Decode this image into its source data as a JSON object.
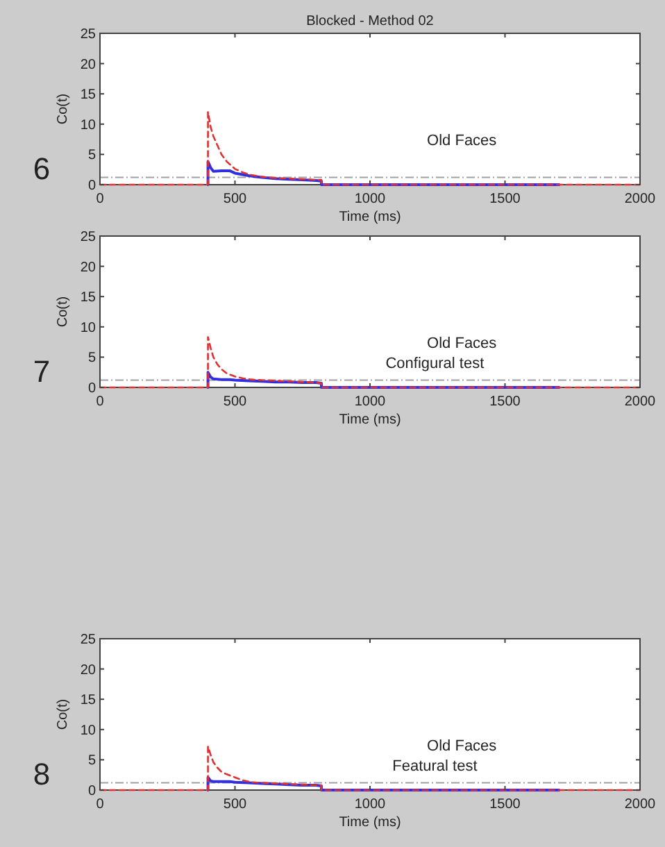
{
  "chart_data": [
    {
      "type": "line",
      "title": "Blocked - Method 02",
      "xlabel": "Time (ms)",
      "ylabel": "Co(t)",
      "xlim": [
        0,
        2000
      ],
      "ylim": [
        0,
        25
      ],
      "xticks": [
        0,
        500,
        1000,
        1500,
        2000
      ],
      "yticks": [
        0,
        5,
        10,
        15,
        20,
        25
      ],
      "annotations": [
        "6",
        "Old Faces"
      ],
      "ref_lines": [
        {
          "axis": "y",
          "value": 1.2,
          "color": "#a0a0a0",
          "line_style": "dashed"
        }
      ],
      "series": [
        {
          "color": "#e03030",
          "line_style": "dashed",
          "x": [
            0,
            400,
            400,
            410,
            420,
            435,
            450,
            470,
            500,
            530,
            560,
            600,
            650,
            700,
            750,
            800,
            820,
            820,
            2000
          ],
          "values": [
            0,
            0,
            12,
            9.5,
            8,
            6.5,
            5,
            3.8,
            2.6,
            2,
            1.6,
            1.3,
            1.1,
            1,
            0.9,
            0.8,
            0.8,
            0,
            0
          ]
        },
        {
          "color": "#3030e0",
          "line_style": "solid",
          "x": [
            400,
            400,
            410,
            420,
            450,
            480,
            500,
            550,
            600,
            650,
            700,
            750,
            800,
            820,
            820,
            1700
          ],
          "values": [
            0,
            3.8,
            2.8,
            2.2,
            2.3,
            2.3,
            1.9,
            1.5,
            1.2,
            1,
            0.9,
            0.8,
            0.7,
            0.6,
            0,
            0
          ]
        }
      ]
    },
    {
      "type": "line",
      "xlabel": "Time (ms)",
      "ylabel": "Co(t)",
      "xlim": [
        0,
        2000
      ],
      "ylim": [
        0,
        25
      ],
      "xticks": [
        0,
        500,
        1000,
        1500,
        2000
      ],
      "yticks": [
        0,
        5,
        10,
        15,
        20,
        25
      ],
      "annotations": [
        "7",
        "Old Faces",
        "Configural test"
      ],
      "ref_lines": [
        {
          "axis": "y",
          "value": 1.2,
          "color": "#a0a0a0",
          "line_style": "dashed"
        }
      ],
      "series": [
        {
          "color": "#e03030",
          "line_style": "dashed",
          "x": [
            0,
            400,
            400,
            410,
            420,
            435,
            450,
            470,
            500,
            530,
            560,
            600,
            650,
            700,
            750,
            800,
            820,
            820,
            2000
          ],
          "values": [
            0,
            0,
            8.3,
            6.5,
            5,
            3.8,
            3,
            2.3,
            1.8,
            1.5,
            1.3,
            1.2,
            1.1,
            1,
            0.9,
            0.8,
            0.7,
            0,
            0
          ]
        },
        {
          "color": "#3030e0",
          "line_style": "solid",
          "x": [
            400,
            400,
            410,
            420,
            450,
            480,
            500,
            550,
            600,
            650,
            700,
            750,
            800,
            820,
            820,
            1700
          ],
          "values": [
            0,
            2.5,
            1.7,
            1.4,
            1.3,
            1.3,
            1.2,
            1.1,
            1,
            0.9,
            0.9,
            0.8,
            0.8,
            0.7,
            0,
            0
          ]
        }
      ]
    },
    {
      "type": "line",
      "xlabel": "Time (ms)",
      "ylabel": "Co(t)",
      "xlim": [
        0,
        2000
      ],
      "ylim": [
        0,
        25
      ],
      "xticks": [
        0,
        500,
        1000,
        1500,
        2000
      ],
      "yticks": [
        0,
        5,
        10,
        15,
        20,
        25
      ],
      "annotations": [
        "8",
        "Old Faces",
        "Featural test"
      ],
      "ref_lines": [
        {
          "axis": "y",
          "value": 1.2,
          "color": "#a0a0a0",
          "line_style": "dashed"
        }
      ],
      "series": [
        {
          "color": "#e03030",
          "line_style": "dashed",
          "x": [
            0,
            400,
            400,
            410,
            420,
            435,
            450,
            470,
            500,
            530,
            560,
            600,
            650,
            700,
            750,
            800,
            820,
            820,
            2000
          ],
          "values": [
            0,
            0,
            7.2,
            5.8,
            4.6,
            3.7,
            3,
            2.6,
            2.1,
            1.6,
            1.3,
            1.2,
            1.1,
            1,
            0.9,
            0.8,
            0.8,
            0,
            0
          ]
        },
        {
          "color": "#3030e0",
          "line_style": "solid",
          "x": [
            400,
            400,
            410,
            420,
            450,
            480,
            500,
            550,
            600,
            650,
            700,
            750,
            800,
            820,
            820,
            1700
          ],
          "values": [
            0,
            2.1,
            1.5,
            1.4,
            1.4,
            1.4,
            1.3,
            1.2,
            1.1,
            1,
            0.9,
            0.8,
            0.8,
            0.7,
            0,
            0
          ]
        }
      ]
    }
  ]
}
